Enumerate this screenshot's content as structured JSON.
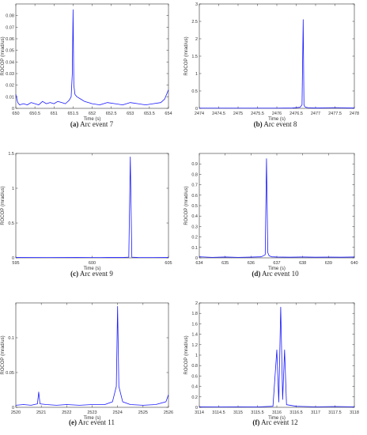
{
  "figure": {
    "line_color": "#1a1aff",
    "panels": [
      {
        "caption_tag": "(a)",
        "caption_text": "Arc event 7",
        "chart_data": {
          "type": "line",
          "title": "",
          "xlabel": "Time (s)",
          "ylabel": "ROCOP (mrad/us)",
          "xlim": [
            650,
            654
          ],
          "ylim": [
            0,
            0.09
          ],
          "xticks": [
            650,
            650.5,
            651,
            651.5,
            652,
            652.5,
            653,
            653.5,
            654
          ],
          "yticks": [
            0,
            0.01,
            0.02,
            0.03,
            0.04,
            0.05,
            0.06,
            0.07,
            0.08
          ],
          "ytick_labels": [
            "0",
            "0.01",
            "0.02",
            "0.03",
            "0.04",
            "0.05",
            "0.06",
            "0.07",
            "0.08"
          ],
          "grid": false,
          "x": [
            650,
            650.05,
            650.1,
            650.2,
            650.3,
            650.4,
            650.5,
            650.6,
            650.7,
            650.8,
            650.9,
            651,
            651.1,
            651.2,
            651.3,
            651.4,
            651.45,
            651.48,
            651.5,
            651.52,
            651.55,
            651.6,
            651.7,
            651.8,
            651.9,
            652,
            652.2,
            652.4,
            652.6,
            652.8,
            653,
            653.2,
            653.4,
            653.6,
            653.8,
            653.9,
            654
          ],
          "y": [
            0.012,
            0.005,
            0.003,
            0.004,
            0.003,
            0.005,
            0.004,
            0.003,
            0.006,
            0.004,
            0.005,
            0.004,
            0.006,
            0.005,
            0.004,
            0.007,
            0.01,
            0.03,
            0.085,
            0.02,
            0.012,
            0.01,
            0.008,
            0.006,
            0.005,
            0.004,
            0.003,
            0.005,
            0.004,
            0.003,
            0.005,
            0.004,
            0.003,
            0.004,
            0.005,
            0.008,
            0.016
          ]
        }
      },
      {
        "caption_tag": "(b)",
        "caption_text": "Arc event 8",
        "chart_data": {
          "type": "line",
          "title": "",
          "xlabel": "Time (s)",
          "ylabel": "ROCOP (mrad/us)",
          "xlim": [
            2474,
            2478
          ],
          "ylim": [
            0,
            3
          ],
          "xticks": [
            2474,
            2474.5,
            2475,
            2475.5,
            2476,
            2476.5,
            2477,
            2477.5,
            2478
          ],
          "yticks": [
            0,
            0.5,
            1,
            1.5,
            2,
            2.5,
            3
          ],
          "ytick_labels": [
            "0",
            "0.5",
            "1",
            "1.5",
            "2",
            "2.5",
            "3"
          ],
          "grid": false,
          "x": [
            2474,
            2474.5,
            2475,
            2475.5,
            2476,
            2476.4,
            2476.6,
            2476.65,
            2476.68,
            2476.7,
            2476.72,
            2476.75,
            2476.8,
            2477,
            2477.5,
            2478
          ],
          "y": [
            0.005,
            0.005,
            0.005,
            0.005,
            0.005,
            0.01,
            0.03,
            0.1,
            2.55,
            0.1,
            0.05,
            0.03,
            0.02,
            0.01,
            0.02,
            0.01
          ]
        }
      },
      {
        "caption_tag": "(c)",
        "caption_text": "Arc event 9",
        "chart_data": {
          "type": "line",
          "title": "",
          "xlabel": "Time (s)",
          "ylabel": "ROCOP (mrad/us)",
          "xlim": [
            595,
            605
          ],
          "ylim": [
            0,
            1.5
          ],
          "xticks": [
            595,
            600,
            605
          ],
          "yticks": [
            0,
            0.5,
            1,
            1.5
          ],
          "ytick_labels": [
            "0",
            "0.5",
            "1",
            "1.5"
          ],
          "grid": false,
          "x": [
            595,
            597,
            599,
            600,
            601,
            602,
            602.4,
            602.5,
            602.6,
            603,
            604,
            605
          ],
          "y": [
            0.005,
            0.004,
            0.005,
            0.004,
            0.005,
            0.005,
            0.01,
            1.45,
            0.01,
            0.005,
            0.004,
            0.005
          ]
        }
      },
      {
        "caption_tag": "(d)",
        "caption_text": "Arc event 10",
        "chart_data": {
          "type": "line",
          "title": "",
          "xlabel": "Time (s)",
          "ylabel": "ROCOP (mrad/us)",
          "xlim": [
            634,
            640
          ],
          "ylim": [
            0,
            1
          ],
          "xticks": [
            634,
            635,
            636,
            637,
            638,
            639,
            640
          ],
          "yticks": [
            0,
            0.1,
            0.2,
            0.3,
            0.4,
            0.5,
            0.6,
            0.7,
            0.8,
            0.9
          ],
          "ytick_labels": [
            "0",
            "0.1",
            "0.2",
            "0.3",
            "0.4",
            "0.5",
            "0.6",
            "0.7",
            "0.8",
            "0.9"
          ],
          "grid": false,
          "x": [
            634,
            634.5,
            635,
            635.5,
            636,
            636.4,
            636.55,
            636.6,
            636.65,
            636.7,
            636.8,
            637,
            637.5,
            638,
            638.5,
            639,
            639.5,
            640
          ],
          "y": [
            0.01,
            0.005,
            0.008,
            0.005,
            0.007,
            0.01,
            0.03,
            0.95,
            0.05,
            0.02,
            0.01,
            0.008,
            0.006,
            0.008,
            0.006,
            0.007,
            0.006,
            0.008
          ]
        }
      },
      {
        "caption_tag": "(e)",
        "caption_text": "Arc event 11",
        "chart_data": {
          "type": "line",
          "title": "",
          "xlabel": "Time (s)",
          "ylabel": "ROCOP (mrad/us)",
          "xlim": [
            2520,
            2526
          ],
          "ylim": [
            0,
            0.15
          ],
          "xticks": [
            2520,
            2521,
            2522,
            2523,
            2524,
            2525,
            2526
          ],
          "yticks": [
            0,
            0.05,
            0.1
          ],
          "ytick_labels": [
            "0",
            "0.05",
            "0.1"
          ],
          "grid": false,
          "x": [
            2520,
            2520.3,
            2520.6,
            2520.85,
            2520.9,
            2520.95,
            2521.2,
            2521.6,
            2522,
            2522.5,
            2523,
            2523.5,
            2523.8,
            2523.95,
            2524,
            2524.05,
            2524.2,
            2524.5,
            2525,
            2525.5,
            2525.9,
            2526
          ],
          "y": [
            0.003,
            0.004,
            0.003,
            0.005,
            0.022,
            0.005,
            0.004,
            0.003,
            0.004,
            0.003,
            0.004,
            0.004,
            0.008,
            0.03,
            0.145,
            0.03,
            0.008,
            0.004,
            0.003,
            0.004,
            0.008,
            0.018
          ]
        }
      },
      {
        "caption_tag": "(f)",
        "caption_text": "Arc event 12",
        "chart_data": {
          "type": "line",
          "title": "",
          "xlabel": "Time (s)",
          "ylabel": "ROCOP (mrad/us)",
          "xlim": [
            3114,
            3118
          ],
          "ylim": [
            0,
            2
          ],
          "xticks": [
            3114,
            3114.5,
            3115,
            3115.5,
            3116,
            3116.5,
            3117,
            3117.5,
            3118
          ],
          "yticks": [
            0,
            0.2,
            0.4,
            0.6,
            0.8,
            1,
            1.2,
            1.4,
            1.6,
            1.8,
            2
          ],
          "ytick_labels": [
            "0",
            "0.2",
            "0.4",
            "0.6",
            "0.8",
            "1",
            "1.2",
            "1.4",
            "1.6",
            "1.8",
            "2"
          ],
          "grid": false,
          "x": [
            3114,
            3114.5,
            3115,
            3115.5,
            3115.9,
            3116,
            3116.05,
            3116.1,
            3116.15,
            3116.2,
            3116.25,
            3116.5,
            3117,
            3117.5,
            3118
          ],
          "y": [
            0.01,
            0.008,
            0.01,
            0.008,
            0.02,
            1.1,
            0.1,
            1.92,
            0.15,
            1.1,
            0.05,
            0.02,
            0.01,
            0.015,
            0.01
          ]
        }
      }
    ]
  }
}
